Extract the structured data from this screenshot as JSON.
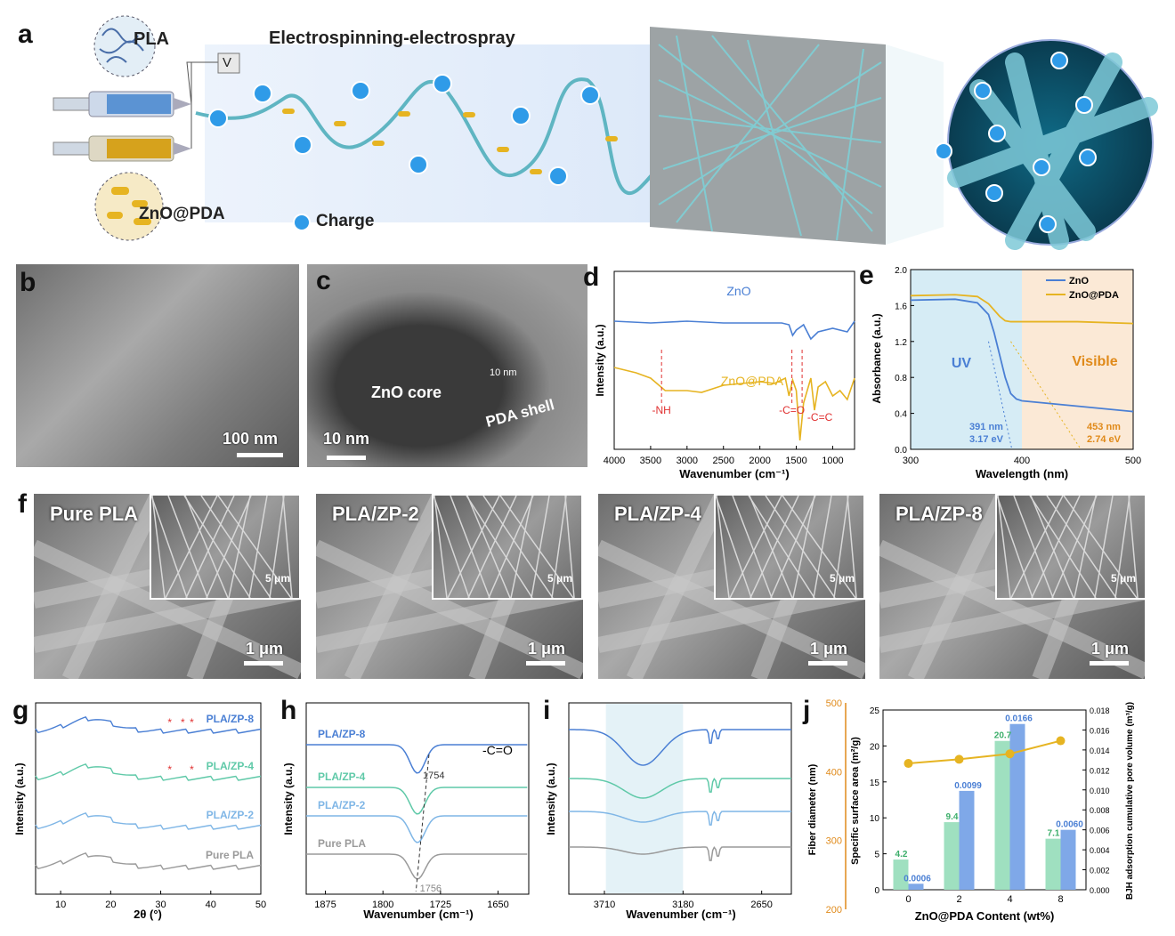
{
  "panel_a": {
    "letter": "a",
    "pla_label": "PLA",
    "process_title": "Electrospinning-electrospray",
    "voltage_label": "V",
    "zno_label": "ZnO@PDA",
    "charge_label": "Charge"
  },
  "panel_b": {
    "letter": "b",
    "scale": "100 nm"
  },
  "panel_c": {
    "letter": "c",
    "core": "ZnO core",
    "shell": "PDA shell",
    "thickness": "10 nm",
    "scale": "10 nm"
  },
  "panel_d": {
    "letter": "d"
  },
  "panel_e": {
    "letter": "e"
  },
  "panel_f": {
    "letter": "f",
    "images": [
      {
        "label": "Pure PLA",
        "inset_scale": "5 μm",
        "scale": "1 μm"
      },
      {
        "label": "PLA/ZP-2",
        "inset_scale": "5 μm",
        "scale": "1 μm"
      },
      {
        "label": "PLA/ZP-4",
        "inset_scale": "5 μm",
        "scale": "1 μm"
      },
      {
        "label": "PLA/ZP-8",
        "inset_scale": "5 μm",
        "scale": "1 μm"
      }
    ]
  },
  "panel_g": {
    "letter": "g"
  },
  "panel_h": {
    "letter": "h"
  },
  "panel_i": {
    "letter": "i"
  },
  "panel_j": {
    "letter": "j"
  },
  "colors": {
    "blue": "#4a7fd4",
    "yellow": "#e6b422",
    "teal": "#5fc9a8",
    "lightblue": "#7fb6e6",
    "gray": "#9a9a9a",
    "red": "#e03030",
    "orange": "#e08a1a",
    "green_bar": "#9fe0c0",
    "blue_bar": "#7fa8e8"
  },
  "chart_data": [
    {
      "id": "d",
      "type": "line",
      "xlabel": "Wavenumber (cm⁻¹)",
      "ylabel": "Intensity (a.u.)",
      "xticks": [
        "4000",
        "3500",
        "3000",
        "2500",
        "2000",
        "1500",
        "1000"
      ],
      "xlim": [
        4000,
        700
      ],
      "series": [
        {
          "name": "ZnO",
          "x": [
            4000,
            3500,
            3000,
            2500,
            2000,
            1700,
            1600,
            1550,
            1500,
            1400,
            1300,
            1200,
            1000,
            800,
            700
          ],
          "y": [
            0.72,
            0.71,
            0.72,
            0.71,
            0.71,
            0.71,
            0.7,
            0.64,
            0.67,
            0.7,
            0.62,
            0.66,
            0.68,
            0.66,
            0.72
          ]
        },
        {
          "name": "ZnO@PDA",
          "x": [
            4000,
            3700,
            3500,
            3300,
            3000,
            2800,
            2500,
            2000,
            1800,
            1650,
            1600,
            1550,
            1500,
            1450,
            1400,
            1300,
            1250,
            1200,
            1100,
            1000,
            900,
            800,
            700
          ],
          "y": [
            0.46,
            0.43,
            0.4,
            0.33,
            0.33,
            0.32,
            0.36,
            0.38,
            0.37,
            0.4,
            0.3,
            0.39,
            0.33,
            0.05,
            0.26,
            0.4,
            0.22,
            0.35,
            0.38,
            0.3,
            0.33,
            0.28,
            0.4
          ]
        }
      ],
      "annotations": [
        "-NH",
        "-C=O",
        "-C=C"
      ]
    },
    {
      "id": "e",
      "type": "line",
      "xlabel": "Wavelength (nm)",
      "ylabel": "Absorbance (a.u.)",
      "xlim": [
        300,
        500
      ],
      "ylim": [
        0.0,
        2.0
      ],
      "xticks": [
        "300",
        "400",
        "500"
      ],
      "yticks": [
        "0.0",
        "0.4",
        "0.8",
        "1.2",
        "1.6",
        "2.0"
      ],
      "regions": [
        "UV",
        "Visible"
      ],
      "series": [
        {
          "name": "ZnO",
          "x": [
            300,
            340,
            360,
            370,
            375,
            380,
            385,
            390,
            395,
            400,
            450,
            500
          ],
          "y": [
            1.66,
            1.67,
            1.63,
            1.5,
            1.3,
            1.05,
            0.8,
            0.62,
            0.56,
            0.54,
            0.48,
            0.42
          ]
        },
        {
          "name": "ZnO@PDA",
          "x": [
            300,
            340,
            360,
            370,
            380,
            385,
            390,
            400,
            450,
            500
          ],
          "y": [
            1.71,
            1.72,
            1.7,
            1.62,
            1.48,
            1.43,
            1.42,
            1.42,
            1.42,
            1.4
          ]
        }
      ],
      "annotations": [
        {
          "text": "391 nm",
          "sub": "3.17 eV"
        },
        {
          "text": "453 nm",
          "sub": "2.74 eV"
        }
      ]
    },
    {
      "id": "g",
      "type": "line",
      "xlabel": "2θ (°)",
      "ylabel": "Intensity (a.u.)",
      "xlim": [
        5,
        50
      ],
      "xticks": [
        "10",
        "20",
        "30",
        "40",
        "50"
      ],
      "series": [
        {
          "name": "PLA/ZP-8"
        },
        {
          "name": "PLA/ZP-4"
        },
        {
          "name": "PLA/ZP-2"
        },
        {
          "name": "Pure PLA"
        }
      ]
    },
    {
      "id": "h",
      "type": "line",
      "xlabel": "Wavenumber (cm⁻¹)",
      "ylabel": "Intensity (a.u.)",
      "xticks": [
        "1875",
        "1800",
        "1725",
        "1650"
      ],
      "series": [
        {
          "name": "PLA/ZP-8"
        },
        {
          "name": "PLA/ZP-4"
        },
        {
          "name": "PLA/ZP-2"
        },
        {
          "name": "Pure PLA"
        }
      ],
      "annotations": [
        "-C=O",
        "1754",
        "1756"
      ]
    },
    {
      "id": "i",
      "type": "line",
      "xlabel": "Wavenumber (cm⁻¹)",
      "ylabel": "Intensity (a.u.)",
      "xticks": [
        "3710",
        "3180",
        "2650"
      ]
    },
    {
      "id": "j",
      "type": "bar",
      "xlabel": "ZnO@PDA Content (wt%)",
      "ylabel_left_outer": "Fiber diameter (nm)",
      "ylabel_left_inner": "Specific surface area (m²/g)",
      "ylabel_right": "BJH adsorption cumulative pore volume (m³/g)",
      "categories": [
        "0",
        "2",
        "4",
        "8"
      ],
      "surface_area": [
        4.2,
        9.4,
        20.7,
        7.1
      ],
      "pore_volume": [
        0.0006,
        0.0099,
        0.0166,
        0.006
      ],
      "fiber_diameter": [
        412,
        418,
        426,
        445
      ],
      "yticks_outer": [
        "200",
        "300",
        "400",
        "500"
      ],
      "yticks_inner": [
        "0",
        "5",
        "10",
        "15",
        "20",
        "25"
      ],
      "yticks_right": [
        "0.000",
        "0.002",
        "0.004",
        "0.006",
        "0.008",
        "0.010",
        "0.012",
        "0.014",
        "0.016",
        "0.018"
      ]
    }
  ]
}
